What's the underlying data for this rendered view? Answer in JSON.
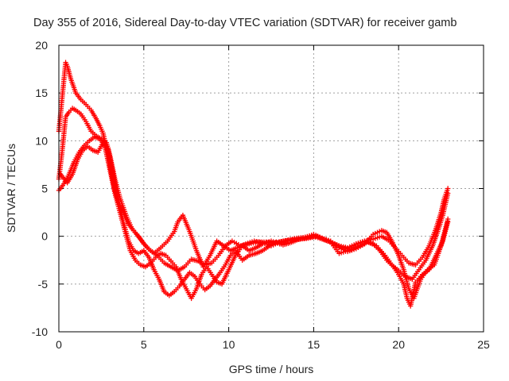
{
  "chart_data": {
    "type": "scatter",
    "title": "Day 355 of 2016, Sidereal Day-to-day VTEC variation (SDTVAR) for receiver gamb",
    "xlabel": "GPS time / hours",
    "ylabel": "SDTVAR / TECUs",
    "xlim": [
      0,
      25
    ],
    "ylim": [
      -10,
      20
    ],
    "xticks": [
      0,
      5,
      10,
      15,
      20,
      25
    ],
    "yticks": [
      -10,
      -5,
      0,
      5,
      10,
      15,
      20
    ],
    "grid": true,
    "marker": "plus",
    "color": "#ff0000",
    "series": [
      {
        "name": "track-1",
        "x": [
          0.0,
          0.4,
          0.5,
          0.7,
          1.0,
          1.3,
          1.6,
          1.9,
          2.2,
          2.4,
          2.6,
          2.9,
          3.1,
          3.3,
          3.5,
          3.8,
          4.0,
          4.4,
          4.8,
          5.2,
          5.6,
          6.0,
          6.4,
          6.8,
          7.0,
          7.3,
          7.7,
          8.1,
          8.5,
          8.9,
          9.3,
          9.7,
          10.1,
          10.5,
          11.0,
          11.5,
          12.0,
          12.5,
          13.0,
          13.5,
          14.0,
          14.5,
          15.0,
          15.5,
          16.0,
          16.5,
          17.0,
          17.5,
          18.0,
          18.5,
          19.0,
          19.4,
          19.8,
          20.2,
          20.6,
          21.0,
          21.4,
          21.8,
          22.2,
          22.5,
          22.7,
          22.9
        ],
        "y": [
          11.0,
          18.2,
          17.8,
          16.5,
          15.0,
          14.3,
          13.8,
          13.2,
          12.3,
          11.6,
          10.8,
          8.5,
          6.5,
          4.8,
          3.6,
          2.5,
          1.5,
          0.6,
          -0.3,
          -1.2,
          -1.8,
          -1.2,
          -0.5,
          0.5,
          1.5,
          2.2,
          0.5,
          -1.5,
          -3.2,
          -2.0,
          -0.5,
          -1.0,
          -1.5,
          -1.2,
          -0.8,
          -0.5,
          -0.7,
          -1.0,
          -0.6,
          -0.4,
          -0.3,
          -0.2,
          0.0,
          -0.3,
          -0.6,
          -1.0,
          -1.2,
          -0.8,
          -0.5,
          -0.3,
          0.0,
          -0.4,
          -1.2,
          -2.0,
          -2.8,
          -3.0,
          -2.2,
          -1.0,
          0.8,
          2.5,
          4.0,
          5.0
        ]
      },
      {
        "name": "track-2",
        "x": [
          0.0,
          0.2,
          0.4,
          0.6,
          0.8,
          1.0,
          1.3,
          1.6,
          1.9,
          2.2,
          2.5,
          2.8,
          3.0,
          3.3,
          3.6,
          4.0,
          4.3,
          4.7,
          5.0,
          5.4,
          5.8,
          6.2,
          6.6,
          7.0,
          7.4,
          7.8,
          8.2,
          8.6,
          9.0,
          9.4,
          9.8,
          10.2,
          10.7,
          11.2,
          11.7,
          12.2,
          12.7,
          13.2,
          13.7,
          14.2,
          14.7,
          15.2,
          15.7,
          16.2,
          16.7,
          17.2,
          17.7,
          18.2,
          18.7,
          19.2,
          19.6,
          20.0,
          20.4,
          20.8,
          21.2,
          21.6,
          22.0,
          22.3,
          22.6,
          22.9
        ],
        "y": [
          6.0,
          9.0,
          12.5,
          13.0,
          13.4,
          13.2,
          12.8,
          12.0,
          11.0,
          10.5,
          10.2,
          9.8,
          8.5,
          6.0,
          4.0,
          2.0,
          0.8,
          0.0,
          -0.8,
          -1.5,
          -2.0,
          -2.8,
          -3.2,
          -3.6,
          -3.2,
          -2.4,
          -2.6,
          -3.0,
          -2.8,
          -2.0,
          -1.0,
          -0.5,
          -1.0,
          -0.8,
          -0.6,
          -0.6,
          -0.7,
          -0.5,
          -0.4,
          -0.3,
          -0.2,
          0.0,
          -0.4,
          -0.8,
          -1.2,
          -1.4,
          -1.0,
          -0.6,
          -1.0,
          -2.0,
          -3.0,
          -3.6,
          -4.2,
          -4.5,
          -3.5,
          -2.5,
          -1.0,
          0.5,
          2.2,
          4.5
        ]
      },
      {
        "name": "track-3",
        "x": [
          0.0,
          0.3,
          0.6,
          0.9,
          1.2,
          1.5,
          1.8,
          2.1,
          2.4,
          2.7,
          3.0,
          3.3,
          3.6,
          3.9,
          4.2,
          4.5,
          4.8,
          5.1,
          5.4,
          5.7,
          6.0,
          6.3,
          6.6,
          6.9,
          7.2,
          7.5,
          7.8,
          8.1,
          8.4,
          8.7,
          9.0,
          9.3,
          9.6,
          10.0,
          10.4,
          10.8,
          11.2,
          11.6,
          12.0,
          12.5,
          13.0,
          13.5,
          14.0,
          14.5,
          15.0,
          15.5,
          16.0,
          16.5,
          17.0,
          17.5,
          18.0,
          18.5,
          19.0,
          19.3,
          19.6,
          20.0,
          20.3,
          20.6,
          20.9,
          21.3,
          21.7,
          22.1,
          22.5,
          22.9
        ],
        "y": [
          4.8,
          5.5,
          6.5,
          7.8,
          8.8,
          9.5,
          10.0,
          10.4,
          10.2,
          9.5,
          7.0,
          4.5,
          2.5,
          0.5,
          -1.5,
          -2.5,
          -3.0,
          -3.2,
          -2.8,
          -2.2,
          -1.8,
          -2.0,
          -2.6,
          -3.2,
          -4.5,
          -5.5,
          -6.5,
          -5.5,
          -4.0,
          -3.2,
          -4.0,
          -4.8,
          -5.0,
          -3.5,
          -2.0,
          -1.0,
          -1.5,
          -1.2,
          -0.8,
          -0.5,
          -0.8,
          -0.4,
          -0.2,
          -0.1,
          0.0,
          -0.2,
          -0.5,
          -1.2,
          -1.6,
          -1.3,
          -0.8,
          0.2,
          0.6,
          0.4,
          -0.5,
          -2.0,
          -3.5,
          -5.5,
          -6.5,
          -4.5,
          -3.5,
          -3.0,
          -1.0,
          1.8
        ]
      },
      {
        "name": "track-4",
        "x": [
          0.1,
          0.3,
          0.5,
          0.8,
          1.1,
          1.4,
          1.7,
          2.0,
          2.3,
          2.6,
          2.9,
          3.2,
          3.5,
          3.8,
          4.1,
          4.4,
          4.7,
          5.0,
          5.3,
          5.6,
          5.9,
          6.2,
          6.5,
          6.8,
          7.1,
          7.4,
          7.7,
          8.0,
          8.3,
          8.6,
          8.9,
          9.2,
          9.5,
          9.8,
          10.1,
          10.4,
          10.8,
          11.2,
          11.6,
          12.0,
          12.4,
          12.8,
          13.2,
          13.6,
          14.0,
          14.5,
          15.0,
          15.5,
          16.0,
          16.5,
          17.0,
          17.5,
          18.0,
          18.5,
          18.9,
          19.3,
          19.7,
          20.0,
          20.3,
          20.5,
          20.7,
          21.0,
          21.4,
          21.8,
          22.2,
          22.6,
          22.9
        ],
        "y": [
          6.5,
          6.0,
          5.6,
          6.5,
          8.0,
          9.0,
          9.4,
          9.0,
          8.8,
          9.8,
          9.2,
          6.5,
          4.0,
          1.5,
          -0.5,
          -1.5,
          -1.8,
          -1.5,
          -2.2,
          -3.5,
          -4.5,
          -5.8,
          -6.2,
          -5.8,
          -5.2,
          -4.5,
          -3.8,
          -4.2,
          -5.0,
          -5.6,
          -5.2,
          -4.5,
          -3.8,
          -3.0,
          -2.0,
          -1.5,
          -2.5,
          -2.0,
          -1.8,
          -1.5,
          -1.0,
          -0.6,
          -0.9,
          -0.7,
          -0.4,
          -0.1,
          0.2,
          -0.2,
          -0.6,
          -1.8,
          -1.5,
          -0.8,
          -0.5,
          -0.8,
          -1.5,
          -2.5,
          -3.2,
          -4.0,
          -5.0,
          -6.5,
          -7.3,
          -4.8,
          -4.0,
          -3.5,
          -2.0,
          -0.5,
          1.5
        ]
      }
    ]
  }
}
